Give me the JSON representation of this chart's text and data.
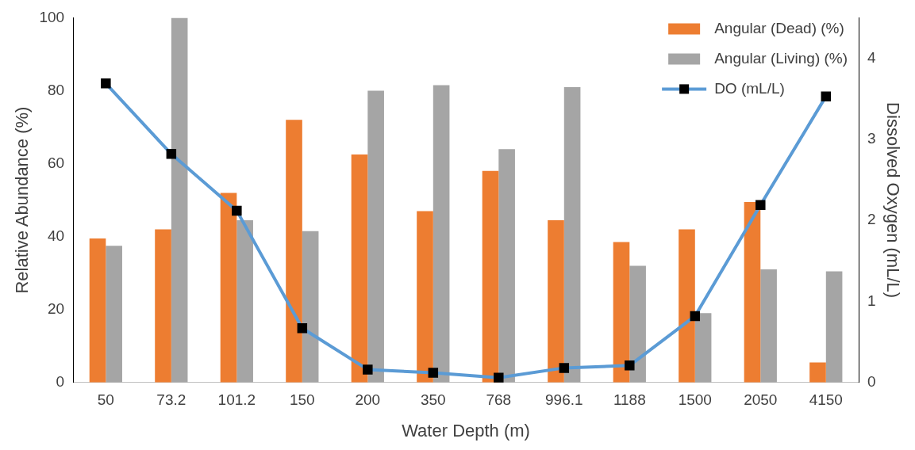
{
  "chart_data": {
    "type": "bar",
    "xlabel": "Water Depth (m)",
    "ylabel": "Relative Abundance (%)",
    "y2label": "Dissolved Oxygen (mL/L)",
    "categories": [
      "50",
      "73.2",
      "101.2",
      "150",
      "200",
      "350",
      "768",
      "996.1",
      "1188",
      "1500",
      "2050",
      "4150"
    ],
    "series": [
      {
        "name": "Angular (Dead) (%)",
        "color": "#ed7d31",
        "values": [
          39.5,
          42,
          52,
          72,
          62.5,
          47,
          58,
          44.5,
          38.5,
          42,
          49.5,
          5.5
        ]
      },
      {
        "name": "Angular (Living) (%)",
        "color": "#a5a5a5",
        "values": [
          37.5,
          100,
          44.5,
          41.5,
          80,
          81.5,
          64,
          81,
          32,
          19,
          31,
          30.5
        ]
      },
      {
        "name": "DO (mL/L)",
        "type": "line",
        "axis": "y2",
        "color": "#5b9bd5",
        "marker": "square",
        "values": [
          3.69,
          2.82,
          2.12,
          0.67,
          0.16,
          0.12,
          0.06,
          0.18,
          0.21,
          0.82,
          2.19,
          3.53
        ]
      }
    ],
    "ylim": [
      0,
      100
    ],
    "yticks": [
      0,
      20,
      40,
      60,
      80,
      100
    ],
    "y2lim": [
      0,
      4.5
    ],
    "y2ticks": [
      0,
      1,
      2,
      3,
      4
    ],
    "grid": false,
    "legend": "top right"
  }
}
